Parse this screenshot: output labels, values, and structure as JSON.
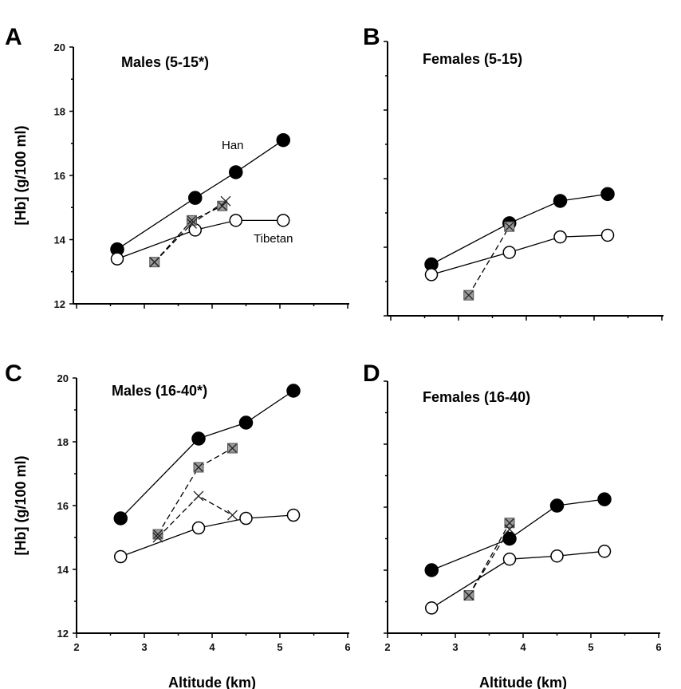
{
  "chart_data": [
    {
      "panel": "A",
      "type": "line",
      "title": "Males (5-15*)",
      "ylabel": "[Hb] (g/100 ml)",
      "xlabel": "",
      "xlim": [
        2,
        6
      ],
      "ylim": [
        12,
        20
      ],
      "yticks": [
        "12",
        "14",
        "16",
        "18",
        "20"
      ],
      "xticks": [],
      "annotations": [
        "Han",
        "Tibetan"
      ],
      "series": [
        {
          "name": "Han",
          "marker": "filled-circle",
          "line": "solid",
          "x": [
            2.6,
            3.75,
            4.35,
            5.05
          ],
          "y": [
            13.7,
            15.3,
            16.1,
            17.1
          ]
        },
        {
          "name": "Tibetan",
          "marker": "open-circle",
          "line": "solid",
          "x": [
            2.6,
            3.75,
            4.35,
            5.05
          ],
          "y": [
            13.4,
            14.3,
            14.6,
            14.6
          ]
        },
        {
          "name": "",
          "marker": "gray-square-x",
          "line": "dashed",
          "x": [
            3.15,
            3.7,
            4.15
          ],
          "y": [
            13.3,
            14.6,
            15.05
          ]
        },
        {
          "name": "",
          "marker": "x",
          "line": "dashed",
          "x": [
            3.15,
            3.7,
            4.2
          ],
          "y": [
            13.3,
            14.5,
            15.2
          ]
        }
      ]
    },
    {
      "panel": "B",
      "type": "line",
      "title": "Females (5-15)",
      "ylabel": "",
      "xlabel": "",
      "xlim": [
        2,
        6
      ],
      "ylim": [
        12,
        20
      ],
      "yticks": [],
      "xticks": [],
      "annotations": [],
      "series": [
        {
          "name": "",
          "marker": "filled-circle",
          "line": "solid",
          "x": [
            2.6,
            3.75,
            4.5,
            5.2
          ],
          "y": [
            13.5,
            14.7,
            15.35,
            15.55
          ]
        },
        {
          "name": "",
          "marker": "open-circle",
          "line": "solid",
          "x": [
            2.6,
            3.75,
            4.5,
            5.2
          ],
          "y": [
            13.2,
            13.85,
            14.3,
            14.35
          ]
        },
        {
          "name": "",
          "marker": "gray-square-x",
          "line": "dashed",
          "x": [
            3.15,
            3.75
          ],
          "y": [
            12.6,
            14.6
          ]
        }
      ]
    },
    {
      "panel": "C",
      "type": "line",
      "title": "Males (16-40*)",
      "ylabel": "[Hb] (g/100 ml)",
      "xlabel": "Altitude (km)",
      "xlim": [
        2,
        6
      ],
      "ylim": [
        12,
        20
      ],
      "yticks": [
        "12",
        "14",
        "16",
        "18",
        "20"
      ],
      "xticks": [
        "2",
        "3",
        "4",
        "5",
        "6"
      ],
      "annotations": [],
      "series": [
        {
          "name": "",
          "marker": "filled-circle",
          "line": "solid",
          "x": [
            2.65,
            3.8,
            4.5,
            5.2
          ],
          "y": [
            15.6,
            18.1,
            18.6,
            19.6
          ]
        },
        {
          "name": "",
          "marker": "open-circle",
          "line": "solid",
          "x": [
            2.65,
            3.8,
            4.5,
            5.2
          ],
          "y": [
            14.4,
            15.3,
            15.6,
            15.7
          ]
        },
        {
          "name": "",
          "marker": "gray-square-x",
          "line": "dashed",
          "x": [
            3.2,
            3.8,
            4.3
          ],
          "y": [
            15.1,
            17.2,
            17.8
          ]
        },
        {
          "name": "",
          "marker": "x",
          "line": "dashed",
          "x": [
            3.2,
            3.8,
            4.3
          ],
          "y": [
            15.0,
            16.3,
            15.7
          ]
        }
      ]
    },
    {
      "panel": "D",
      "type": "line",
      "title": "Females (16-40)",
      "ylabel": "",
      "xlabel": "Altitude (km)",
      "xlim": [
        2,
        6
      ],
      "ylim": [
        12,
        20
      ],
      "yticks": [],
      "xticks": [
        "2",
        "3",
        "4",
        "5",
        "6"
      ],
      "annotations": [],
      "series": [
        {
          "name": "",
          "marker": "filled-circle",
          "line": "solid",
          "x": [
            2.65,
            3.8,
            4.5,
            5.2
          ],
          "y": [
            14.0,
            15.0,
            16.05,
            16.25
          ]
        },
        {
          "name": "",
          "marker": "open-circle",
          "line": "solid",
          "x": [
            2.65,
            3.8,
            4.5,
            5.2
          ],
          "y": [
            12.8,
            14.35,
            14.45,
            14.6
          ]
        },
        {
          "name": "",
          "marker": "gray-square-x",
          "line": "dashed",
          "x": [
            3.2,
            3.8
          ],
          "y": [
            13.2,
            15.5
          ]
        },
        {
          "name": "",
          "marker": "x",
          "line": "dashed",
          "x": [
            3.2,
            3.8
          ],
          "y": [
            13.2,
            15.3
          ]
        }
      ]
    }
  ]
}
